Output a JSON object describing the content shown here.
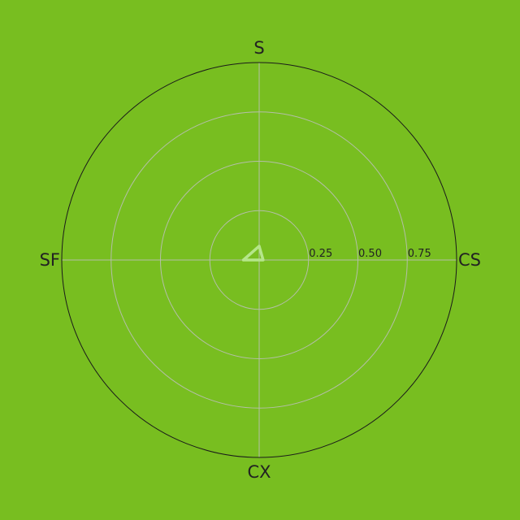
{
  "colors": {
    "background": "#78be20",
    "grid": "#b4bfa8",
    "outer_ring": "#1a1a1a",
    "series": "#b5e68a",
    "text": "#222222"
  },
  "chart_data": {
    "type": "radar",
    "axes": [
      "S",
      "CS",
      "CX",
      "SF"
    ],
    "radial_ticks": [
      {
        "value": 0.25,
        "label": "0.25"
      },
      {
        "value": 0.5,
        "label": "0.50"
      },
      {
        "value": 0.75,
        "label": "0.75"
      }
    ],
    "rlim": [
      0,
      1
    ],
    "grid": true,
    "series": [
      {
        "values": [
          0.07,
          0.02,
          0.0,
          0.08
        ]
      }
    ]
  }
}
